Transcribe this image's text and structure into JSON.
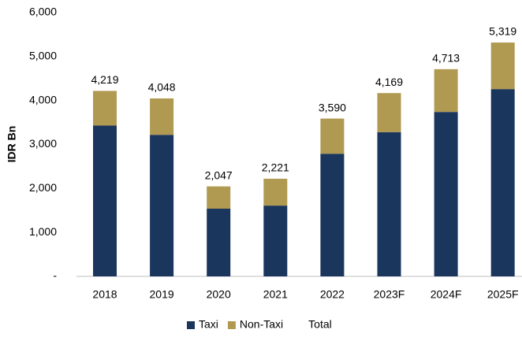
{
  "chart_data": {
    "type": "stacked_bar",
    "y_label": "IDR Bn",
    "categories": [
      "2018",
      "2019",
      "2020",
      "2021",
      "2022",
      "2023F",
      "2024F",
      "2025F"
    ],
    "series": [
      {
        "name": "Taxi",
        "color": "#1b365d",
        "values": [
          3430,
          3220,
          1540,
          1610,
          2790,
          3280,
          3740,
          4260
        ]
      },
      {
        "name": "Non-Taxi",
        "color": "#b09a51",
        "values": [
          789,
          828,
          507,
          611,
          800,
          889,
          973,
          1059
        ]
      },
      {
        "name": "Total",
        "color": null,
        "values": [
          4219,
          4048,
          2047,
          2221,
          3590,
          4169,
          4713,
          5319
        ],
        "value_labels": [
          "4,219",
          "4,048",
          "2,047",
          "2,221",
          "3,590",
          "4,169",
          "4,713",
          "5,319"
        ]
      }
    ],
    "ylim": [
      0,
      6000
    ],
    "yticks": [
      {
        "value": 0,
        "label": "-"
      },
      {
        "value": 1000,
        "label": "1,000"
      },
      {
        "value": 2000,
        "label": "2,000"
      },
      {
        "value": 3000,
        "label": "3,000"
      },
      {
        "value": 4000,
        "label": "4,000"
      },
      {
        "value": 5000,
        "label": "5,000"
      },
      {
        "value": 6000,
        "label": "6,000"
      }
    ],
    "grid": false,
    "legend": "bottom"
  }
}
